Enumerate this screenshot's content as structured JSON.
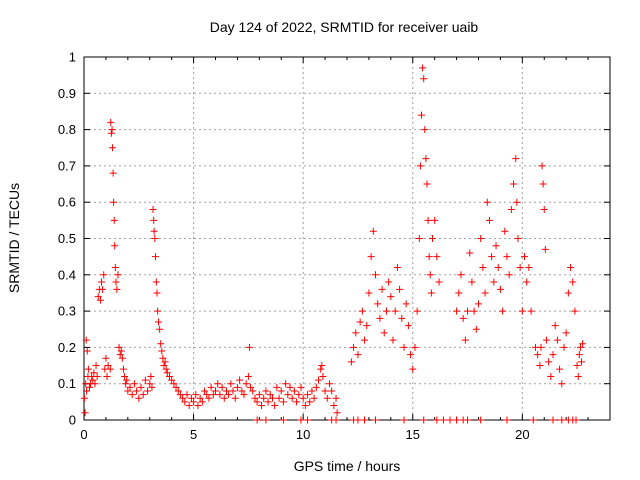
{
  "chart_data": {
    "type": "scatter",
    "title": "Day 124 of 2022, SRMTID for receiver uaib",
    "xlabel": "GPS time / hours",
    "ylabel": "SRMTID / TECUs",
    "xlim": [
      0,
      24
    ],
    "ylim": [
      0,
      1
    ],
    "x_ticks": [
      0,
      5,
      10,
      15,
      20
    ],
    "x_tick_labels": [
      "0",
      "5",
      "10",
      "15",
      "20"
    ],
    "y_ticks": [
      0,
      0.1,
      0.2,
      0.3,
      0.4,
      0.5,
      0.6,
      0.7,
      0.8,
      0.9,
      1
    ],
    "y_tick_labels": [
      "0",
      "0.1",
      "0.2",
      "0.3",
      "0.4",
      "0.5",
      "0.6",
      "0.7",
      "0.8",
      "0.9",
      "1"
    ],
    "grid": true,
    "marker": "+",
    "series": [
      {
        "name": "SRMTID",
        "color": "#ff0000",
        "points": [
          [
            0.02,
            0.06
          ],
          [
            0.05,
            0.02
          ],
          [
            0.08,
            0.1
          ],
          [
            0.1,
            0.22
          ],
          [
            0.12,
            0.08
          ],
          [
            0.15,
            0.19
          ],
          [
            0.18,
            0.12
          ],
          [
            0.2,
            0.14
          ],
          [
            0.25,
            0.09
          ],
          [
            0.3,
            0.1
          ],
          [
            0.35,
            0.12
          ],
          [
            0.4,
            0.11
          ],
          [
            0.45,
            0.13
          ],
          [
            0.5,
            0.1
          ],
          [
            0.55,
            0.15
          ],
          [
            0.6,
            0.12
          ],
          [
            0.65,
            0.34
          ],
          [
            0.7,
            0.36
          ],
          [
            0.75,
            0.33
          ],
          [
            0.8,
            0.38
          ],
          [
            0.85,
            0.36
          ],
          [
            0.9,
            0.4
          ],
          [
            0.95,
            0.14
          ],
          [
            1.0,
            0.17
          ],
          [
            1.05,
            0.12
          ],
          [
            1.1,
            0.15
          ],
          [
            1.2,
            0.14
          ],
          [
            1.22,
            0.82
          ],
          [
            1.25,
            0.79
          ],
          [
            1.28,
            0.8
          ],
          [
            1.3,
            0.75
          ],
          [
            1.33,
            0.68
          ],
          [
            1.35,
            0.6
          ],
          [
            1.38,
            0.55
          ],
          [
            1.4,
            0.48
          ],
          [
            1.43,
            0.42
          ],
          [
            1.46,
            0.38
          ],
          [
            1.5,
            0.36
          ],
          [
            1.55,
            0.4
          ],
          [
            1.6,
            0.2
          ],
          [
            1.65,
            0.18
          ],
          [
            1.7,
            0.19
          ],
          [
            1.75,
            0.17
          ],
          [
            1.8,
            0.14
          ],
          [
            1.85,
            0.12
          ],
          [
            1.9,
            0.1
          ],
          [
            1.95,
            0.11
          ],
          [
            2.0,
            0.08
          ],
          [
            2.1,
            0.09
          ],
          [
            2.2,
            0.07
          ],
          [
            2.3,
            0.1
          ],
          [
            2.4,
            0.08
          ],
          [
            2.5,
            0.06
          ],
          [
            2.6,
            0.09
          ],
          [
            2.7,
            0.07
          ],
          [
            2.8,
            0.11
          ],
          [
            2.9,
            0.08
          ],
          [
            3.0,
            0.1
          ],
          [
            3.05,
            0.12
          ],
          [
            3.1,
            0.09
          ],
          [
            3.15,
            0.58
          ],
          [
            3.18,
            0.55
          ],
          [
            3.2,
            0.52
          ],
          [
            3.23,
            0.5
          ],
          [
            3.26,
            0.45
          ],
          [
            3.3,
            0.38
          ],
          [
            3.33,
            0.35
          ],
          [
            3.36,
            0.3
          ],
          [
            3.4,
            0.27
          ],
          [
            3.45,
            0.25
          ],
          [
            3.5,
            0.21
          ],
          [
            3.55,
            0.19
          ],
          [
            3.6,
            0.17
          ],
          [
            3.65,
            0.15
          ],
          [
            3.7,
            0.16
          ],
          [
            3.75,
            0.14
          ],
          [
            3.8,
            0.13
          ],
          [
            3.9,
            0.12
          ],
          [
            4.0,
            0.11
          ],
          [
            4.1,
            0.1
          ],
          [
            4.2,
            0.09
          ],
          [
            4.3,
            0.08
          ],
          [
            4.4,
            0.07
          ],
          [
            4.5,
            0.06
          ],
          [
            4.6,
            0.05
          ],
          [
            4.7,
            0.07
          ],
          [
            4.8,
            0.04
          ],
          [
            4.9,
            0.06
          ],
          [
            5.0,
            0.05
          ],
          [
            5.1,
            0.07
          ],
          [
            5.2,
            0.04
          ],
          [
            5.3,
            0.06
          ],
          [
            5.4,
            0.05
          ],
          [
            5.5,
            0.08
          ],
          [
            5.6,
            0.07
          ],
          [
            5.7,
            0.06
          ],
          [
            5.8,
            0.09
          ],
          [
            5.9,
            0.07
          ],
          [
            6.0,
            0.08
          ],
          [
            6.1,
            0.1
          ],
          [
            6.2,
            0.07
          ],
          [
            6.3,
            0.09
          ],
          [
            6.4,
            0.06
          ],
          [
            6.5,
            0.08
          ],
          [
            6.6,
            0.07
          ],
          [
            6.7,
            0.1
          ],
          [
            6.8,
            0.08
          ],
          [
            6.9,
            0.06
          ],
          [
            7.0,
            0.09
          ],
          [
            7.1,
            0.11
          ],
          [
            7.2,
            0.08
          ],
          [
            7.3,
            0.07
          ],
          [
            7.4,
            0.1
          ],
          [
            7.5,
            0.12
          ],
          [
            7.55,
            0.2
          ],
          [
            7.6,
            0.09
          ],
          [
            7.7,
            0.08
          ],
          [
            7.8,
            0.06
          ],
          [
            7.9,
            0.05
          ],
          [
            8.0,
            0.07
          ],
          [
            8.1,
            0.04
          ],
          [
            8.2,
            0.06
          ],
          [
            8.3,
            0.08
          ],
          [
            8.4,
            0.05
          ],
          [
            8.5,
            0.07
          ],
          [
            8.6,
            0.06
          ],
          [
            8.7,
            0.04
          ],
          [
            8.8,
            0.09
          ],
          [
            8.9,
            0.06
          ],
          [
            9.0,
            0.08
          ],
          [
            9.1,
            0.05
          ],
          [
            9.2,
            0.1
          ],
          [
            9.3,
            0.07
          ],
          [
            9.4,
            0.09
          ],
          [
            9.5,
            0.06
          ],
          [
            9.6,
            0.08
          ],
          [
            9.7,
            0.05
          ],
          [
            9.8,
            0.07
          ],
          [
            9.9,
            0.09
          ],
          [
            10.0,
            0.06
          ],
          [
            10.1,
            0.04
          ],
          [
            10.2,
            0.07
          ],
          [
            10.3,
            0.05
          ],
          [
            10.4,
            0.08
          ],
          [
            10.5,
            0.06
          ],
          [
            10.6,
            0.09
          ],
          [
            10.7,
            0.11
          ],
          [
            10.8,
            0.14
          ],
          [
            10.85,
            0.15
          ],
          [
            10.9,
            0.12
          ],
          [
            11.0,
            0.08
          ],
          [
            11.1,
            0.06
          ],
          [
            11.2,
            0.1
          ],
          [
            11.3,
            0.08
          ],
          [
            11.4,
            0.04
          ],
          [
            11.5,
            0.06
          ],
          [
            11.55,
            0.02
          ],
          [
            12.2,
            0.16
          ],
          [
            12.3,
            0.2
          ],
          [
            12.4,
            0.24
          ],
          [
            12.5,
            0.18
          ],
          [
            12.6,
            0.27
          ],
          [
            12.7,
            0.3
          ],
          [
            12.8,
            0.22
          ],
          [
            12.9,
            0.26
          ],
          [
            13.0,
            0.35
          ],
          [
            13.1,
            0.45
          ],
          [
            13.2,
            0.52
          ],
          [
            13.3,
            0.4
          ],
          [
            13.4,
            0.32
          ],
          [
            13.5,
            0.28
          ],
          [
            13.6,
            0.36
          ],
          [
            13.7,
            0.24
          ],
          [
            13.8,
            0.3
          ],
          [
            13.9,
            0.38
          ],
          [
            14.0,
            0.34
          ],
          [
            14.1,
            0.22
          ],
          [
            14.2,
            0.3
          ],
          [
            14.3,
            0.42
          ],
          [
            14.4,
            0.36
          ],
          [
            14.5,
            0.28
          ],
          [
            14.6,
            0.2
          ],
          [
            14.7,
            0.32
          ],
          [
            14.8,
            0.26
          ],
          [
            14.9,
            0.18
          ],
          [
            15.0,
            0.14
          ],
          [
            15.1,
            0.2
          ],
          [
            15.2,
            0.3
          ],
          [
            15.3,
            0.5
          ],
          [
            15.35,
            0.7
          ],
          [
            15.4,
            0.84
          ],
          [
            15.45,
            0.97
          ],
          [
            15.5,
            0.94
          ],
          [
            15.55,
            0.8
          ],
          [
            15.6,
            0.72
          ],
          [
            15.65,
            0.65
          ],
          [
            15.7,
            0.55
          ],
          [
            15.75,
            0.45
          ],
          [
            15.8,
            0.4
          ],
          [
            15.85,
            0.35
          ],
          [
            15.9,
            0.5
          ],
          [
            16.0,
            0.55
          ],
          [
            16.1,
            0.45
          ],
          [
            16.2,
            0.38
          ],
          [
            17.0,
            0.3
          ],
          [
            17.1,
            0.35
          ],
          [
            17.2,
            0.4
          ],
          [
            17.3,
            0.28
          ],
          [
            17.4,
            0.22
          ],
          [
            17.5,
            0.3
          ],
          [
            17.6,
            0.46
          ],
          [
            17.7,
            0.38
          ],
          [
            17.8,
            0.3
          ],
          [
            17.9,
            0.25
          ],
          [
            18.0,
            0.32
          ],
          [
            18.1,
            0.5
          ],
          [
            18.2,
            0.42
          ],
          [
            18.3,
            0.35
          ],
          [
            18.4,
            0.6
          ],
          [
            18.5,
            0.55
          ],
          [
            18.6,
            0.45
          ],
          [
            18.7,
            0.38
          ],
          [
            18.8,
            0.48
          ],
          [
            18.9,
            0.42
          ],
          [
            19.0,
            0.36
          ],
          [
            19.1,
            0.3
          ],
          [
            19.2,
            0.52
          ],
          [
            19.3,
            0.45
          ],
          [
            19.4,
            0.4
          ],
          [
            19.5,
            0.58
          ],
          [
            19.6,
            0.65
          ],
          [
            19.7,
            0.72
          ],
          [
            19.75,
            0.6
          ],
          [
            19.8,
            0.5
          ],
          [
            19.9,
            0.42
          ],
          [
            20.0,
            0.3
          ],
          [
            20.1,
            0.45
          ],
          [
            20.2,
            0.38
          ],
          [
            20.3,
            0.42
          ],
          [
            20.4,
            0.3
          ],
          [
            20.6,
            0.2
          ],
          [
            20.7,
            0.18
          ],
          [
            20.8,
            0.15
          ],
          [
            20.85,
            0.2
          ],
          [
            20.9,
            0.7
          ],
          [
            20.95,
            0.65
          ],
          [
            21.0,
            0.58
          ],
          [
            21.05,
            0.47
          ],
          [
            21.1,
            0.22
          ],
          [
            21.2,
            0.16
          ],
          [
            21.3,
            0.12
          ],
          [
            21.4,
            0.18
          ],
          [
            21.5,
            0.26
          ],
          [
            21.6,
            0.22
          ],
          [
            21.7,
            0.14
          ],
          [
            21.8,
            0.1
          ],
          [
            21.9,
            0.2
          ],
          [
            22.0,
            0.24
          ],
          [
            22.1,
            0.35
          ],
          [
            22.2,
            0.42
          ],
          [
            22.3,
            0.38
          ],
          [
            22.4,
            0.3
          ],
          [
            22.5,
            0.15
          ],
          [
            22.55,
            0.12
          ],
          [
            22.6,
            0.18
          ],
          [
            22.65,
            0.2
          ],
          [
            22.7,
            0.16
          ],
          [
            22.75,
            0.21
          ]
        ]
      }
    ],
    "baseline_x": [
      7.9,
      8.3,
      9.1,
      9.9,
      10.2,
      11.3,
      11.5,
      12.3,
      12.5,
      12.8,
      13.3,
      14.6,
      15.5,
      16.1,
      16.4,
      16.7,
      17.0,
      17.3,
      17.5,
      18.1,
      19.3,
      20.5,
      21.4,
      21.8,
      22.1,
      22.3,
      22.45
    ]
  }
}
